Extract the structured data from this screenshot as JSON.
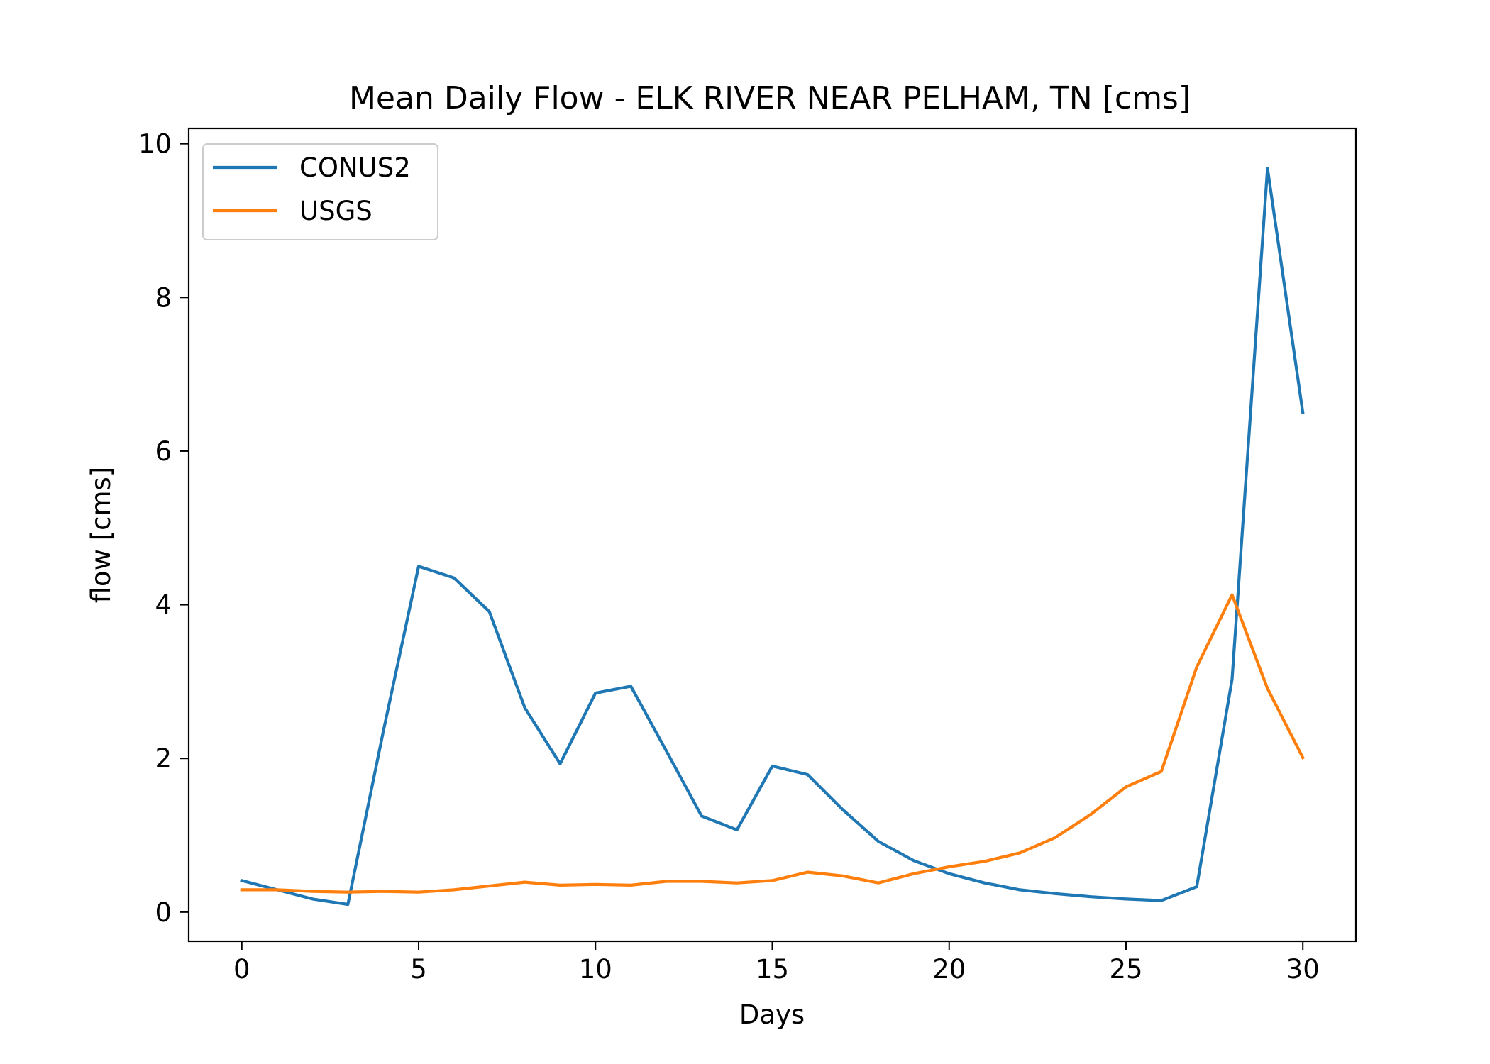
{
  "chart_data": {
    "type": "line",
    "title": "Mean Daily Flow - ELK RIVER NEAR PELHAM, TN [cms]",
    "xlabel": "Days",
    "ylabel": "flow [cms]",
    "xlim": [
      -1.5,
      31.5
    ],
    "ylim": [
      -0.38,
      10.2
    ],
    "x_ticks": [
      0,
      5,
      10,
      15,
      20,
      25,
      30
    ],
    "y_ticks": [
      0,
      2,
      4,
      6,
      8,
      10
    ],
    "grid": false,
    "legend_position": "top-left",
    "x": [
      0,
      1,
      2,
      3,
      4,
      5,
      6,
      7,
      8,
      9,
      10,
      11,
      12,
      13,
      14,
      15,
      16,
      17,
      18,
      19,
      20,
      21,
      22,
      23,
      24,
      25,
      26,
      27,
      28,
      29,
      30
    ],
    "series": [
      {
        "name": "CONUS2",
        "color": "#1f77b4",
        "values": [
          0.41,
          0.29,
          0.17,
          0.1,
          2.35,
          4.5,
          4.35,
          3.91,
          2.66,
          1.93,
          2.85,
          2.94,
          2.1,
          1.25,
          1.07,
          1.9,
          1.79,
          1.33,
          0.92,
          0.67,
          0.5,
          0.38,
          0.29,
          0.24,
          0.2,
          0.17,
          0.15,
          0.33,
          3.03,
          9.68,
          6.5
        ]
      },
      {
        "name": "USGS",
        "color": "#ff7f0e",
        "values": [
          0.29,
          0.29,
          0.27,
          0.26,
          0.27,
          0.26,
          0.29,
          0.34,
          0.39,
          0.35,
          0.36,
          0.35,
          0.4,
          0.4,
          0.38,
          0.41,
          0.52,
          0.47,
          0.38,
          0.5,
          0.59,
          0.66,
          0.77,
          0.97,
          1.27,
          1.63,
          1.83,
          3.19,
          4.13,
          2.91,
          2.01
        ]
      }
    ]
  }
}
